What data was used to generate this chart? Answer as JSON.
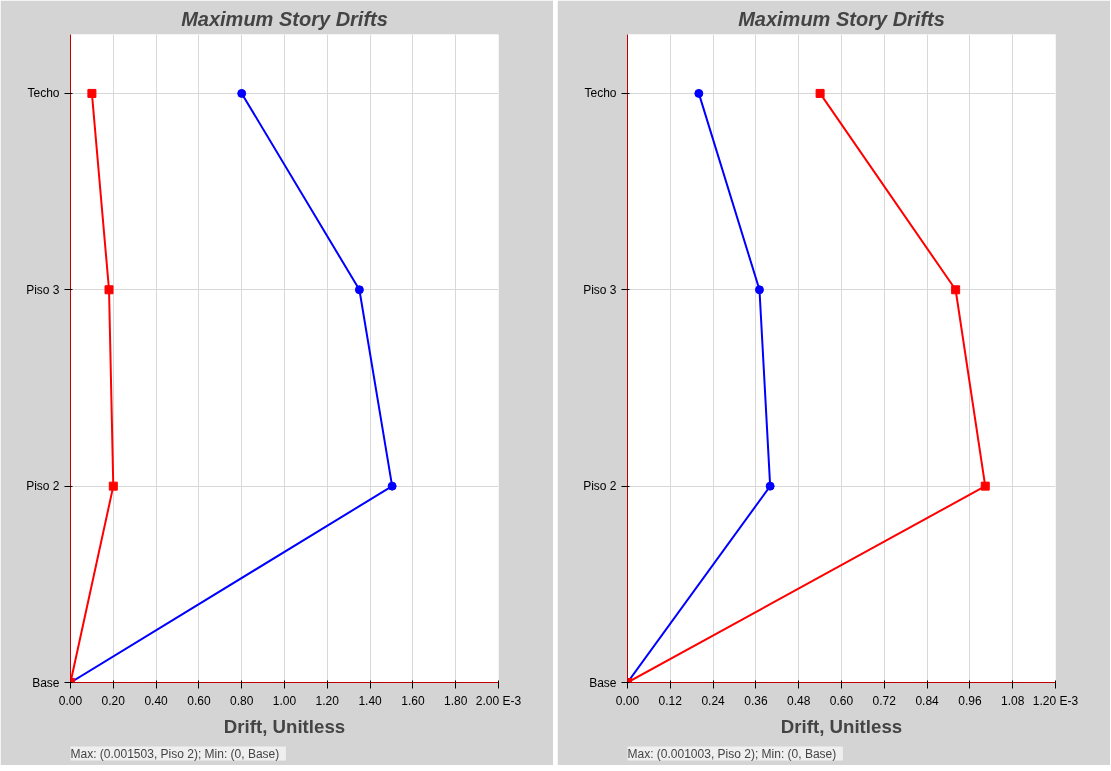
{
  "chart_data": [
    {
      "type": "line",
      "orientation": "horizontal",
      "title": "Maximum Story Drifts",
      "xlabel": "Drift, Unitless",
      "grid": true,
      "categories": [
        "Techo",
        "Piso 3",
        "Piso 2",
        "Base"
      ],
      "xlim": [
        0,
        2.0
      ],
      "xticks": [
        {
          "value": 0,
          "label": "0.00"
        },
        {
          "value": 0.2,
          "label": "0.20"
        },
        {
          "value": 0.4,
          "label": "0.40"
        },
        {
          "value": 0.6,
          "label": "0.60"
        },
        {
          "value": 0.8,
          "label": "0.80"
        },
        {
          "value": 1.0,
          "label": "1.00"
        },
        {
          "value": 1.2,
          "label": "1.20"
        },
        {
          "value": 1.4,
          "label": "1.40"
        },
        {
          "value": 1.6,
          "label": "1.60"
        },
        {
          "value": 1.8,
          "label": "1.80"
        },
        {
          "value": 2.0,
          "label": "2.00 E-3"
        }
      ],
      "series": [
        {
          "color": "#0000ff",
          "marker": "circle",
          "values": [
            0.8,
            1.35,
            1.503,
            0
          ]
        },
        {
          "color": "#ff0000",
          "marker": "square",
          "values": [
            0.1,
            0.18,
            0.2,
            0
          ]
        }
      ],
      "annotations": [
        "Max: (0.001503, Piso 2);   Min: (0, Base)"
      ]
    },
    {
      "type": "line",
      "orientation": "horizontal",
      "title": "Maximum Story Drifts",
      "xlabel": "Drift, Unitless",
      "grid": true,
      "categories": [
        "Techo",
        "Piso 3",
        "Piso 2",
        "Base"
      ],
      "xlim": [
        0,
        1.2
      ],
      "xticks": [
        {
          "value": 0,
          "label": "0.00"
        },
        {
          "value": 0.12,
          "label": "0.12"
        },
        {
          "value": 0.24,
          "label": "0.24"
        },
        {
          "value": 0.36,
          "label": "0.36"
        },
        {
          "value": 0.48,
          "label": "0.48"
        },
        {
          "value": 0.6,
          "label": "0.60"
        },
        {
          "value": 0.72,
          "label": "0.72"
        },
        {
          "value": 0.84,
          "label": "0.84"
        },
        {
          "value": 0.96,
          "label": "0.96"
        },
        {
          "value": 1.08,
          "label": "1.08"
        },
        {
          "value": 1.2,
          "label": "1.20 E-3"
        }
      ],
      "series": [
        {
          "color": "#0000ff",
          "marker": "circle",
          "values": [
            0.2,
            0.37,
            0.4,
            0
          ]
        },
        {
          "color": "#ff0000",
          "marker": "square",
          "values": [
            0.54,
            0.92,
            1.003,
            0
          ]
        }
      ],
      "annotations": [
        "Max: (0.001003, Piso 2);   Min: (0, Base)"
      ]
    }
  ]
}
